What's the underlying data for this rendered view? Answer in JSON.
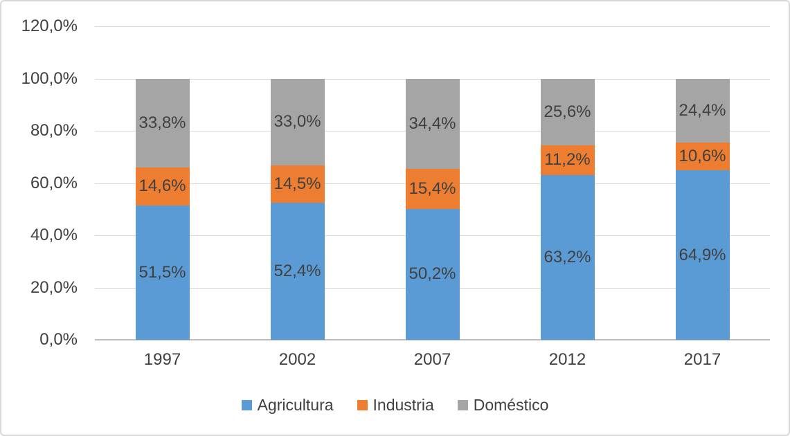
{
  "chart_data": {
    "type": "bar",
    "stacked": true,
    "title": "",
    "xlabel": "",
    "ylabel": "",
    "categories": [
      "1997",
      "2002",
      "2007",
      "2012",
      "2017"
    ],
    "series": [
      {
        "name": "Agricultura",
        "color": "#5B9BD5",
        "values": [
          51.5,
          52.4,
          50.2,
          63.2,
          64.9
        ],
        "labels": [
          "51,5%",
          "52,4%",
          "50,2%",
          "63,2%",
          "64,9%"
        ]
      },
      {
        "name": "Industria",
        "color": "#ED7D31",
        "values": [
          14.6,
          14.5,
          15.4,
          11.2,
          10.6
        ],
        "labels": [
          "14,6%",
          "14,5%",
          "15,4%",
          "11,2%",
          "10,6%"
        ]
      },
      {
        "name": "Doméstico",
        "color": "#A5A5A5",
        "values": [
          33.8,
          33.0,
          34.4,
          25.6,
          24.4
        ],
        "labels": [
          "33,8%",
          "33,0%",
          "34,4%",
          "25,6%",
          "24,4%"
        ]
      }
    ],
    "ylim": [
      0,
      120
    ],
    "ytick_values": [
      0,
      20,
      40,
      60,
      80,
      100,
      120
    ],
    "ytick_labels": [
      "0,0%",
      "20,0%",
      "40,0%",
      "60,0%",
      "80,0%",
      "100,0%",
      "120,0%"
    ],
    "grid": true,
    "gridline_color": "#D9D9D9",
    "axis_line_color": "#BFBFBF",
    "text_color": "#404040",
    "legend_position": "bottom"
  }
}
